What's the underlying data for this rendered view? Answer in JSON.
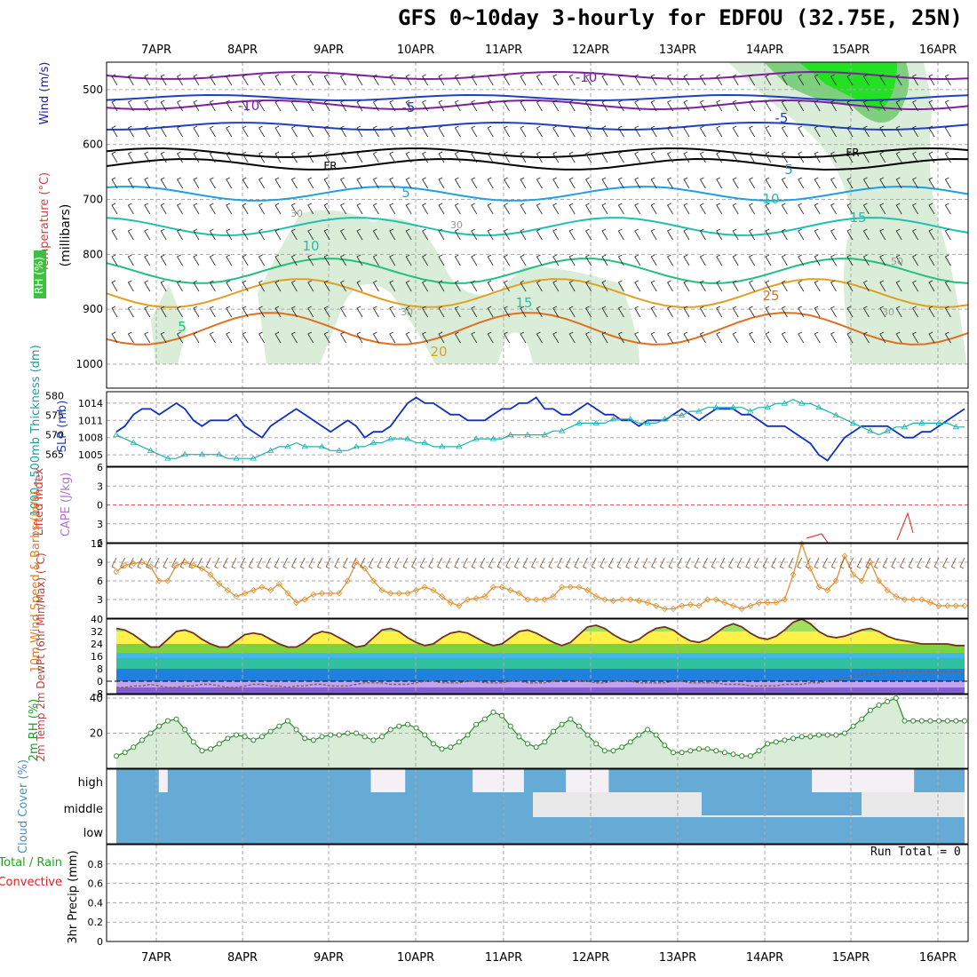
{
  "title": "GFS 0~10day 3-hourly for EDFOU (32.75E, 25N)",
  "run_total_text": "Run Total = 0",
  "days": [
    "7APR",
    "8APR",
    "9APR",
    "10APR",
    "11APR",
    "12APR",
    "13APR",
    "14APR",
    "15APR",
    "16APR"
  ],
  "panels": {
    "upper_air": {
      "ylabel_parts": [
        {
          "text": "RH (%)",
          "color": "#00aa00"
        },
        {
          "text": "Temperature (°C)",
          "color": "#d04040"
        },
        {
          "text": "Wind (m/s)",
          "color": "#2020a0"
        },
        {
          "text": "(millibars)",
          "color": "#000000"
        }
      ],
      "yticks": [
        "500",
        "600",
        "700",
        "800",
        "900",
        "1000"
      ]
    },
    "slp_thickness": {
      "ylabel_left": "1000~500mb Thickness (dm)",
      "ylabel_right": "SLP (mb)",
      "thickness_ticks": [
        "565",
        "570",
        "575",
        "580"
      ],
      "slp_ticks": [
        "1005",
        "1008",
        "1011",
        "1014"
      ]
    },
    "cape_li": {
      "ylabel_a": "Lifted Index",
      "ylabel_b": "CAPE (J/kg)",
      "yticks": [
        "6",
        "3",
        "0",
        "3",
        "6"
      ]
    },
    "wind10m": {
      "ylabel": "10m Wind Speed & Barbs (m/s)",
      "yticks": [
        "3",
        "6",
        "9",
        "12"
      ]
    },
    "temp2m": {
      "ylabel": "2m Temp 2m DewPt (6hr Min/Max) (°C)",
      "yticks": [
        "-8",
        "0",
        "8",
        "16",
        "24",
        "32",
        "40"
      ]
    },
    "rh2m": {
      "ylabel": "2m RH (%)",
      "yticks": [
        "20",
        "40"
      ]
    },
    "cloud": {
      "ylabel": "Cloud Cover (%)",
      "levels": [
        "high",
        "middle",
        "low"
      ]
    },
    "precip": {
      "ylabel": "3hr Precip (mm)",
      "legend_a": "Total / Rain",
      "legend_b": "Convective",
      "yticks": [
        "0",
        "0.2",
        "0.4",
        "0.6",
        "0.8"
      ]
    }
  },
  "contour_labels": {
    "temperature": [
      "-10",
      "-10",
      "-5",
      "-5",
      "5",
      "5",
      "10",
      "10",
      "15",
      "15",
      "20",
      "25",
      "5"
    ],
    "freezing": [
      "FR",
      "FR"
    ],
    "rh": [
      "30",
      "30",
      "30",
      "50",
      "30"
    ]
  },
  "chart_data": {
    "type": "line",
    "x_start": "7APR 00Z minus 9h",
    "time_step_hours": 3,
    "series": [
      {
        "name": "SLP (mb)",
        "values": [
          1009,
          1010,
          1012,
          1013,
          1013,
          1012,
          1013,
          1014,
          1013,
          1011,
          1010,
          1011,
          1011,
          1011,
          1012,
          1010,
          1009,
          1008,
          1010,
          1011,
          1012,
          1013,
          1012,
          1011,
          1010,
          1009,
          1010,
          1011,
          1010,
          1008,
          1009,
          1009,
          1010,
          1012,
          1014,
          1015,
          1014,
          1014,
          1013,
          1012,
          1012,
          1011,
          1011,
          1011,
          1012,
          1013,
          1013,
          1014,
          1014,
          1015,
          1013,
          1013,
          1012,
          1012,
          1013,
          1014,
          1013,
          1012,
          1012,
          1011,
          1011,
          1010,
          1011,
          1011,
          1011,
          1012,
          1013,
          1012,
          1011,
          1012,
          1013,
          1013,
          1013,
          1012,
          1012,
          1011,
          1010,
          1010,
          1010,
          1009,
          1008,
          1007,
          1005,
          1004,
          1006,
          1008,
          1009,
          1010,
          1010,
          1010,
          1010,
          1009,
          1008,
          1008,
          1009,
          1009,
          1010,
          1011,
          1012,
          1013
        ]
      },
      {
        "name": "1000~500mb Thickness (dm)",
        "values": [
          570,
          569,
          568,
          567,
          566,
          565,
          564,
          564,
          565,
          565,
          565,
          565,
          565,
          564,
          564,
          564,
          564,
          565,
          566,
          567,
          567,
          568,
          567,
          567,
          567,
          566,
          566,
          566,
          567,
          567,
          568,
          568,
          569,
          569,
          569,
          568,
          568,
          567,
          567,
          567,
          567,
          568,
          569,
          569,
          569,
          569,
          570,
          570,
          570,
          570,
          570,
          571,
          571,
          572,
          573,
          573,
          573,
          573,
          574,
          574,
          574,
          573,
          573,
          573,
          574,
          575,
          575,
          576,
          576,
          577,
          577,
          577,
          577,
          577,
          576,
          577,
          577,
          578,
          578,
          579,
          578,
          578,
          577,
          576,
          575,
          574,
          573,
          572,
          571,
          570,
          571,
          572,
          572,
          573,
          573,
          573,
          573,
          573,
          572,
          572
        ]
      },
      {
        "name": "10m Wind Speed (m/s)",
        "values": [
          7.5,
          8.5,
          8.8,
          9,
          8.3,
          6,
          6,
          8.5,
          9,
          8.5,
          8,
          7,
          5.5,
          4.5,
          3.5,
          4,
          4.5,
          5,
          4.5,
          5.5,
          4,
          2.5,
          3,
          3.8,
          4,
          4,
          4,
          6,
          9,
          8,
          6,
          4.5,
          4,
          4,
          4,
          4.5,
          5,
          4.5,
          3.5,
          2.5,
          2,
          3,
          3.2,
          3.5,
          5,
          5,
          4.5,
          4,
          3,
          3,
          3,
          3.5,
          5,
          5,
          5,
          4.5,
          3.5,
          3,
          2.8,
          3,
          3,
          2.8,
          2.5,
          2,
          1.5,
          1.5,
          2,
          2.2,
          2,
          3,
          3,
          2.5,
          2,
          1.5,
          2,
          2.5,
          2.5,
          2.5,
          3,
          7,
          12,
          8,
          5,
          4.5,
          6,
          10,
          7,
          6,
          9,
          6,
          4.5,
          3.5,
          3,
          3,
          3,
          2.5,
          2,
          2,
          2,
          2
        ]
      },
      {
        "name": "2m Temp (°C)",
        "values": [
          34,
          33,
          30,
          26,
          22,
          22,
          27,
          32,
          33,
          31,
          27,
          24,
          22,
          22,
          26,
          30,
          31,
          30,
          27,
          24,
          22,
          22,
          25,
          30,
          32,
          31,
          28,
          25,
          22,
          23,
          28,
          33,
          34,
          32,
          28,
          25,
          23,
          24,
          28,
          31,
          32,
          31,
          28,
          25,
          23,
          24,
          28,
          32,
          33,
          31,
          28,
          25,
          23,
          25,
          30,
          35,
          36,
          34,
          30,
          27,
          25,
          27,
          31,
          34,
          35,
          33,
          29,
          26,
          25,
          27,
          31,
          35,
          37,
          35,
          31,
          28,
          27,
          29,
          33,
          38,
          40,
          37,
          32,
          29,
          28,
          29,
          31,
          33,
          34,
          32,
          29,
          27,
          26,
          25,
          24,
          24,
          24,
          24,
          23,
          23
        ]
      },
      {
        "name": "2m DewPt (°C)",
        "values": [
          -4,
          -4,
          -3,
          -3,
          -2,
          -3,
          -4,
          -4,
          -3,
          -3,
          -2,
          -2,
          -3,
          -4,
          -4,
          -3,
          -2,
          -2,
          -3,
          -3,
          -4,
          -3,
          -3,
          -2,
          -2,
          -3,
          -3,
          -3,
          -2,
          -1,
          -1,
          -1,
          -2,
          -2,
          -2,
          -1,
          0,
          0,
          -1,
          -1,
          -1,
          0,
          0,
          -1,
          -1,
          -1,
          0,
          0,
          -1,
          -1,
          -1,
          0,
          1,
          1,
          0,
          0,
          -1,
          -1,
          0,
          0,
          0,
          -1,
          -1,
          -1,
          -1,
          0,
          0,
          -1,
          -1,
          -1,
          -1,
          -2,
          -2,
          -2,
          -3,
          -3,
          -3,
          -3,
          -2,
          -2,
          -2,
          -1,
          -1,
          0,
          1,
          2,
          3,
          4,
          5,
          5,
          6,
          6,
          6,
          6,
          6,
          6,
          6,
          6,
          6,
          6
        ]
      },
      {
        "name": "2m RH (%)",
        "values": [
          7,
          9,
          12,
          16,
          20,
          24,
          27,
          28,
          22,
          15,
          10,
          11,
          14,
          17,
          19,
          18,
          16,
          18,
          21,
          24,
          27,
          22,
          17,
          16,
          18,
          19,
          19,
          20,
          20,
          18,
          16,
          18,
          22,
          24,
          25,
          23,
          19,
          14,
          11,
          12,
          15,
          19,
          25,
          28,
          32,
          30,
          24,
          18,
          14,
          12,
          15,
          21,
          25,
          28,
          24,
          19,
          14,
          10,
          10,
          12,
          15,
          19,
          22,
          19,
          13,
          9,
          9,
          10,
          11,
          11,
          10,
          9,
          8,
          7,
          7,
          10,
          14,
          15,
          16,
          17,
          18,
          18,
          19,
          19,
          19,
          20,
          24,
          28,
          33,
          36,
          38,
          40,
          27,
          27,
          27,
          27,
          27,
          27,
          27,
          27
        ]
      },
      {
        "name": "Cloud Cover high (%)",
        "values": [
          100,
          100,
          100,
          100,
          100,
          0,
          100,
          100,
          100,
          100,
          100,
          100,
          100,
          100,
          100,
          100,
          100,
          100,
          100,
          100,
          100,
          100,
          100,
          100,
          100,
          100,
          100,
          100,
          100,
          100,
          0,
          0,
          0,
          0,
          100,
          100,
          100,
          100,
          100,
          100,
          100,
          100,
          0,
          0,
          0,
          0,
          0,
          0,
          100,
          100,
          100,
          100,
          100,
          0,
          0,
          0,
          0,
          0,
          100,
          100,
          100,
          100,
          100,
          100,
          100,
          100,
          100,
          100,
          100,
          100,
          100,
          100,
          100,
          100,
          100,
          100,
          100,
          100,
          100,
          100,
          100,
          100,
          0,
          0,
          0,
          0,
          0,
          0,
          0,
          0,
          0,
          0,
          0,
          0,
          100,
          100,
          100,
          100,
          100,
          100
        ]
      },
      {
        "name": "Run Total Precip (mm)",
        "values": [
          0
        ]
      }
    ],
    "xlabel": "",
    "ylims": {
      "upper_air": [
        450,
        1000
      ],
      "slp": [
        1003,
        1016
      ],
      "thickness": [
        562,
        580
      ],
      "cape_li": [
        -6,
        6
      ],
      "wind10m": [
        0,
        12
      ],
      "temp2m": [
        -8,
        40
      ],
      "rh2m": [
        0,
        40
      ],
      "precip": [
        0,
        1
      ]
    }
  }
}
